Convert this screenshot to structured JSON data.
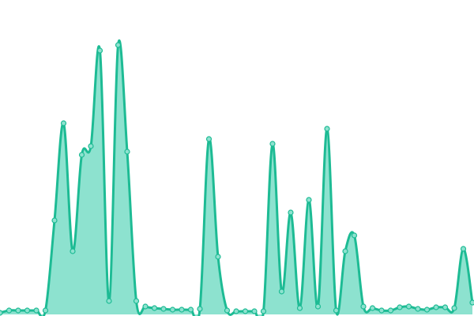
{
  "chart_data": {
    "type": "area",
    "values": [
      2,
      5,
      5,
      5,
      5,
      5,
      119,
      242,
      80,
      202,
      213,
      334,
      17,
      341,
      206,
      17,
      10,
      8,
      7,
      6,
      6,
      6,
      7,
      222,
      73,
      5,
      4,
      4,
      4,
      4,
      216,
      29,
      129,
      8,
      145,
      10,
      235,
      5,
      80,
      100,
      10,
      8,
      5,
      5,
      9,
      10,
      7,
      6,
      9,
      9,
      8,
      83,
      15
    ],
    "ylim": [
      0,
      400
    ],
    "color": "#1dbb94",
    "fill_color": "#8de2cf"
  }
}
